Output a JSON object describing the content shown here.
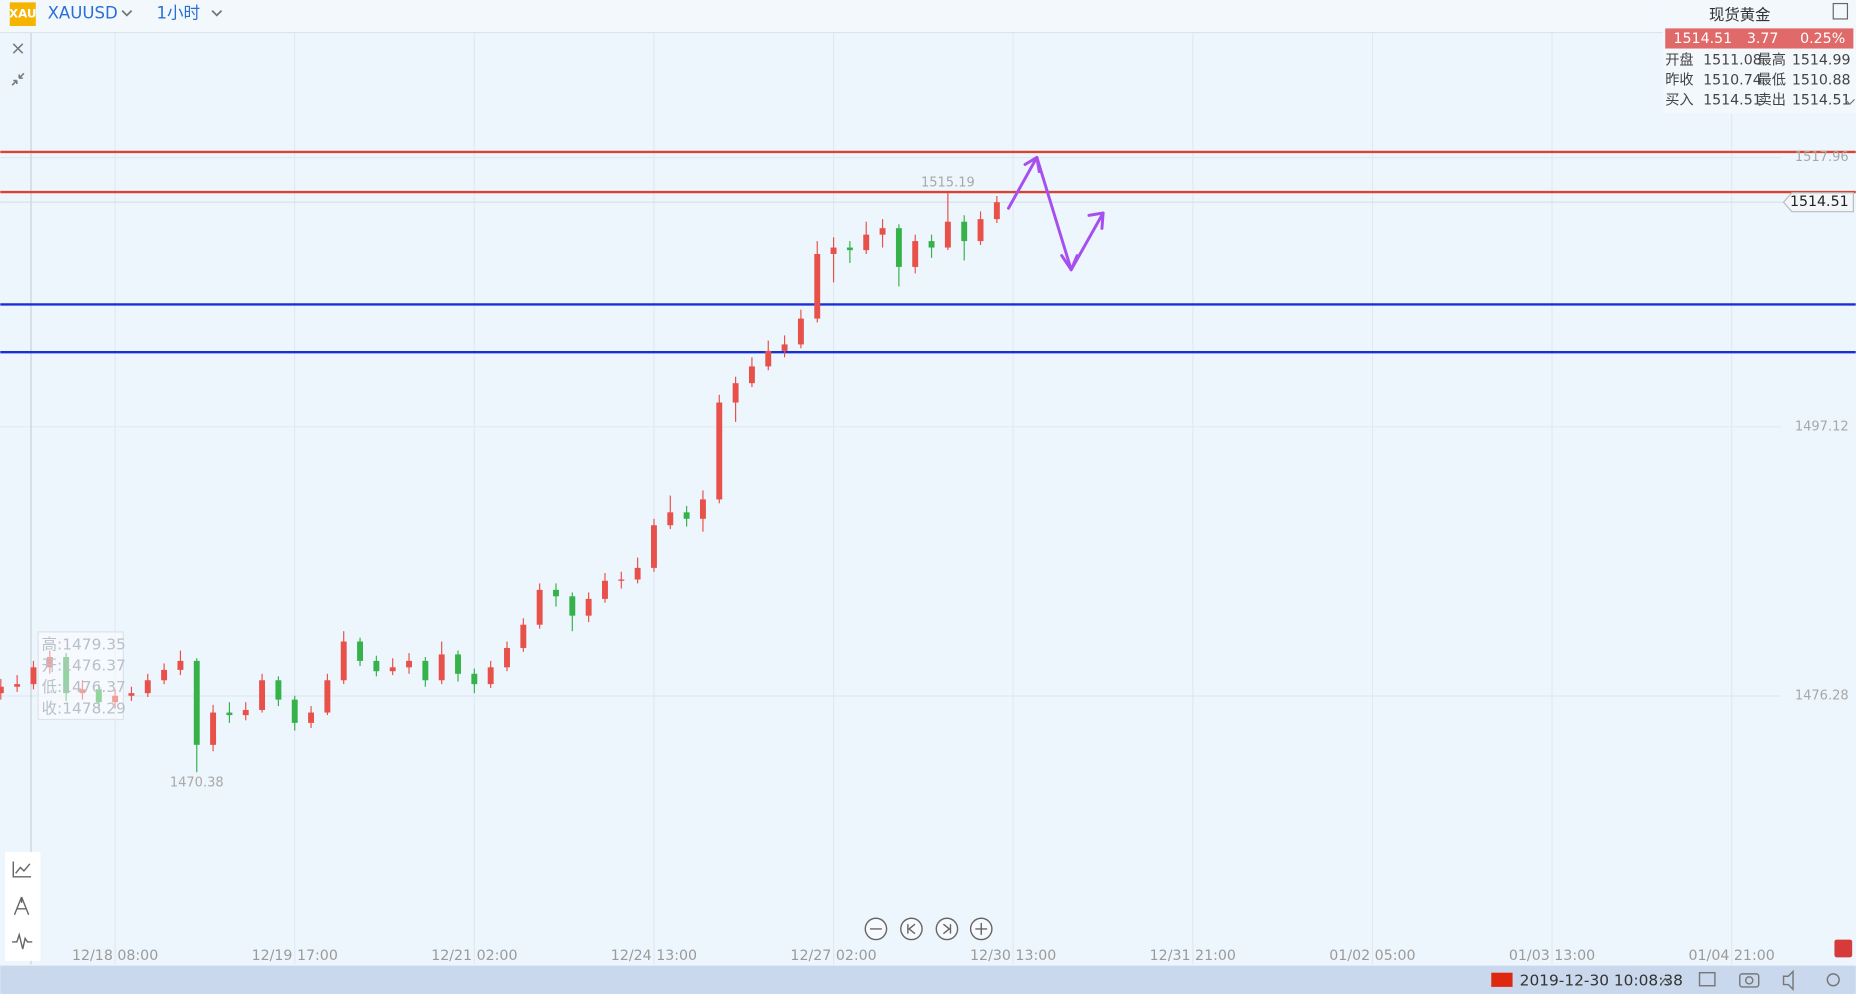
{
  "toolbar": {
    "logo": "XAU",
    "symbol": "XAUUSD",
    "timeframe": "1小时"
  },
  "quote": {
    "title": "现货黄金",
    "price": "1514.51",
    "change": "3.77",
    "percent": "0.25%",
    "rows": [
      [
        "开盘",
        "1511.08",
        "最高",
        "1514.99"
      ],
      [
        "昨收",
        "1510.74",
        "最低",
        "1510.88"
      ],
      [
        "买入",
        "1514.51",
        "卖出",
        "1514.51"
      ]
    ]
  },
  "chart_data": {
    "type": "candlestick",
    "up_color": "#e8504a",
    "down_color": "#36b24a",
    "xlim": [
      -21.1,
      306.1
    ],
    "xticks": [
      {
        "value": 0,
        "label": "12/18 08:00"
      },
      {
        "value": 33,
        "label": "12/19 17:00"
      },
      {
        "value": 66,
        "label": "12/21 02:00"
      },
      {
        "value": 99,
        "label": "12/24 13:00"
      },
      {
        "value": 132,
        "label": "12/27 02:00"
      },
      {
        "value": 165,
        "label": "12/30 13:00"
      },
      {
        "value": 198,
        "label": "12/31 21:00"
      },
      {
        "value": 231,
        "label": "01/02 05:00"
      },
      {
        "value": 264,
        "label": "01/03 13:00"
      },
      {
        "value": 297,
        "label": "01/04 21:00"
      }
    ],
    "ylim": [
      1455.5,
      1527.6
    ],
    "yticks": [
      1476.28,
      1497.12,
      1517.96
    ],
    "grid": true,
    "x": [
      -21,
      -18,
      -15,
      -12,
      -9,
      -6,
      -3,
      0,
      3,
      6,
      9,
      12,
      15,
      18,
      21,
      24,
      27,
      30,
      33,
      36,
      39,
      42,
      45,
      48,
      51,
      54,
      57,
      60,
      63,
      66,
      69,
      72,
      75,
      78,
      81,
      84,
      87,
      90,
      93,
      96,
      99,
      102,
      105,
      108,
      111,
      114,
      117,
      120,
      123,
      126,
      129,
      132,
      135,
      138,
      141,
      144,
      147,
      150,
      153,
      156,
      159,
      162
    ],
    "candles": [
      [
        1476.5,
        1477.6,
        1476.0,
        1477.0
      ],
      [
        1477.0,
        1477.9,
        1476.6,
        1477.2
      ],
      [
        1477.2,
        1479.0,
        1476.8,
        1478.5
      ],
      [
        1478.5,
        1479.8,
        1478.0,
        1479.3
      ],
      [
        1479.3,
        1479.6,
        1475.9,
        1476.5
      ],
      [
        1476.5,
        1477.5,
        1476.0,
        1476.8
      ],
      [
        1476.8,
        1477.2,
        1475.2,
        1475.8
      ],
      [
        1475.8,
        1476.8,
        1475.3,
        1476.3
      ],
      [
        1476.3,
        1477.0,
        1475.9,
        1476.5
      ],
      [
        1476.5,
        1478.0,
        1476.2,
        1477.5
      ],
      [
        1477.5,
        1478.8,
        1477.2,
        1478.3
      ],
      [
        1478.3,
        1479.8,
        1477.9,
        1479.0
      ],
      [
        1479.0,
        1479.2,
        1470.38,
        1472.5
      ],
      [
        1472.5,
        1475.6,
        1472.0,
        1475.0
      ],
      [
        1475.0,
        1475.8,
        1474.2,
        1474.8
      ],
      [
        1474.8,
        1475.8,
        1474.4,
        1475.2
      ],
      [
        1475.2,
        1478.0,
        1475.0,
        1477.5
      ],
      [
        1477.5,
        1477.8,
        1475.5,
        1476.0
      ],
      [
        1476.0,
        1476.3,
        1473.6,
        1474.2
      ],
      [
        1474.2,
        1475.5,
        1473.8,
        1475.0
      ],
      [
        1475.0,
        1478.0,
        1474.8,
        1477.5
      ],
      [
        1477.5,
        1481.3,
        1477.2,
        1480.5
      ],
      [
        1480.5,
        1480.8,
        1478.6,
        1479.0
      ],
      [
        1479.0,
        1479.4,
        1477.8,
        1478.2
      ],
      [
        1478.2,
        1479.2,
        1477.9,
        1478.5
      ],
      [
        1478.5,
        1479.6,
        1478.0,
        1479.0
      ],
      [
        1479.0,
        1479.3,
        1477.0,
        1477.5
      ],
      [
        1477.5,
        1480.5,
        1477.2,
        1479.5
      ],
      [
        1479.5,
        1479.8,
        1477.4,
        1478.0
      ],
      [
        1478.0,
        1478.4,
        1476.5,
        1477.2
      ],
      [
        1477.2,
        1479.0,
        1476.9,
        1478.5
      ],
      [
        1478.5,
        1480.5,
        1478.2,
        1480.0
      ],
      [
        1480.0,
        1482.3,
        1479.7,
        1481.8
      ],
      [
        1481.8,
        1485.0,
        1481.5,
        1484.5
      ],
      [
        1484.5,
        1485.0,
        1483.2,
        1484.0
      ],
      [
        1484.0,
        1484.3,
        1481.3,
        1482.5
      ],
      [
        1482.5,
        1484.3,
        1482.0,
        1483.8
      ],
      [
        1483.8,
        1485.8,
        1483.5,
        1485.2
      ],
      [
        1485.2,
        1485.9,
        1484.6,
        1485.3
      ],
      [
        1485.3,
        1487.0,
        1485.0,
        1486.2
      ],
      [
        1486.2,
        1490.0,
        1485.9,
        1489.5
      ],
      [
        1489.5,
        1491.8,
        1489.2,
        1490.5
      ],
      [
        1490.5,
        1491.0,
        1489.4,
        1490.0
      ],
      [
        1490.0,
        1492.2,
        1489.0,
        1491.5
      ],
      [
        1491.5,
        1499.6,
        1491.2,
        1499.0
      ],
      [
        1499.0,
        1501.0,
        1497.5,
        1500.5
      ],
      [
        1500.5,
        1502.5,
        1500.2,
        1501.8
      ],
      [
        1501.8,
        1503.8,
        1501.5,
        1503.0
      ],
      [
        1503.0,
        1504.2,
        1502.5,
        1503.5
      ],
      [
        1503.5,
        1506.2,
        1503.2,
        1505.5
      ],
      [
        1505.5,
        1511.5,
        1505.2,
        1510.5
      ],
      [
        1510.5,
        1511.8,
        1508.3,
        1511.0
      ],
      [
        1511.0,
        1511.5,
        1509.8,
        1510.8
      ],
      [
        1510.8,
        1513.0,
        1510.5,
        1512.0
      ],
      [
        1512.0,
        1513.2,
        1511.0,
        1512.5
      ],
      [
        1512.5,
        1512.8,
        1508.0,
        1509.5
      ],
      [
        1509.5,
        1512.0,
        1509.0,
        1511.5
      ],
      [
        1511.5,
        1512.0,
        1510.2,
        1511.0
      ],
      [
        1511.0,
        1515.19,
        1510.8,
        1513.0
      ],
      [
        1513.0,
        1513.5,
        1510.0,
        1511.5
      ],
      [
        1511.5,
        1513.8,
        1511.2,
        1513.2
      ],
      [
        1513.2,
        1514.99,
        1512.9,
        1514.51
      ]
    ],
    "hlines": [
      {
        "value": 1518.4,
        "color": "#d9432f"
      },
      {
        "value": 1515.3,
        "color": "#d9432f"
      },
      {
        "value": 1506.6,
        "color": "#1c2fd6"
      },
      {
        "value": 1502.9,
        "color": "#1c2fd6"
      }
    ],
    "last_price": 1514.51,
    "tooltip": [
      "高:1479.35",
      "开:1476.37",
      "低:1476.37",
      "收:1478.29"
    ]
  },
  "footer": {
    "datetime": "2019-12-30 10:08:38"
  }
}
